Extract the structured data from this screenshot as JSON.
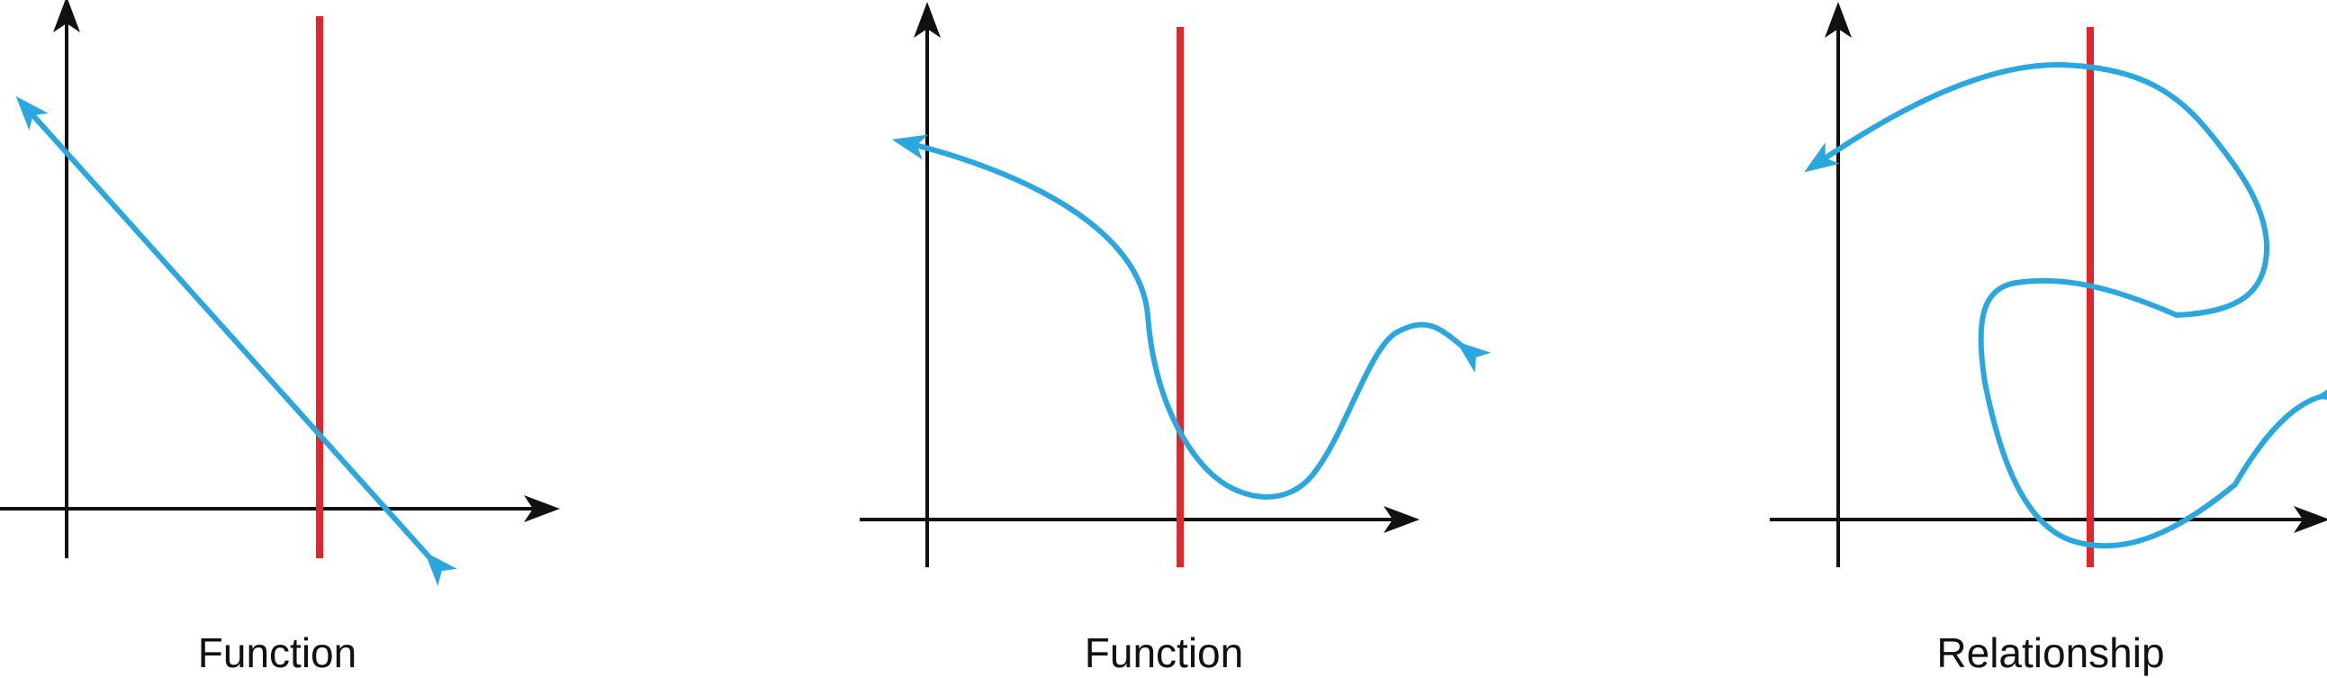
{
  "colors": {
    "axis": "#111111",
    "vertical_line": "#e3262c",
    "curve": "#2aa7df",
    "background": "#ffffff"
  },
  "panels": [
    {
      "caption": "Function",
      "curve": "straight-line",
      "vertical_line_intersections": 1
    },
    {
      "caption": "Function",
      "curve": "s-curve",
      "vertical_line_intersections": 1
    },
    {
      "caption": "Relationship",
      "curve": "looping-curve",
      "vertical_line_intersections": 3
    }
  ]
}
